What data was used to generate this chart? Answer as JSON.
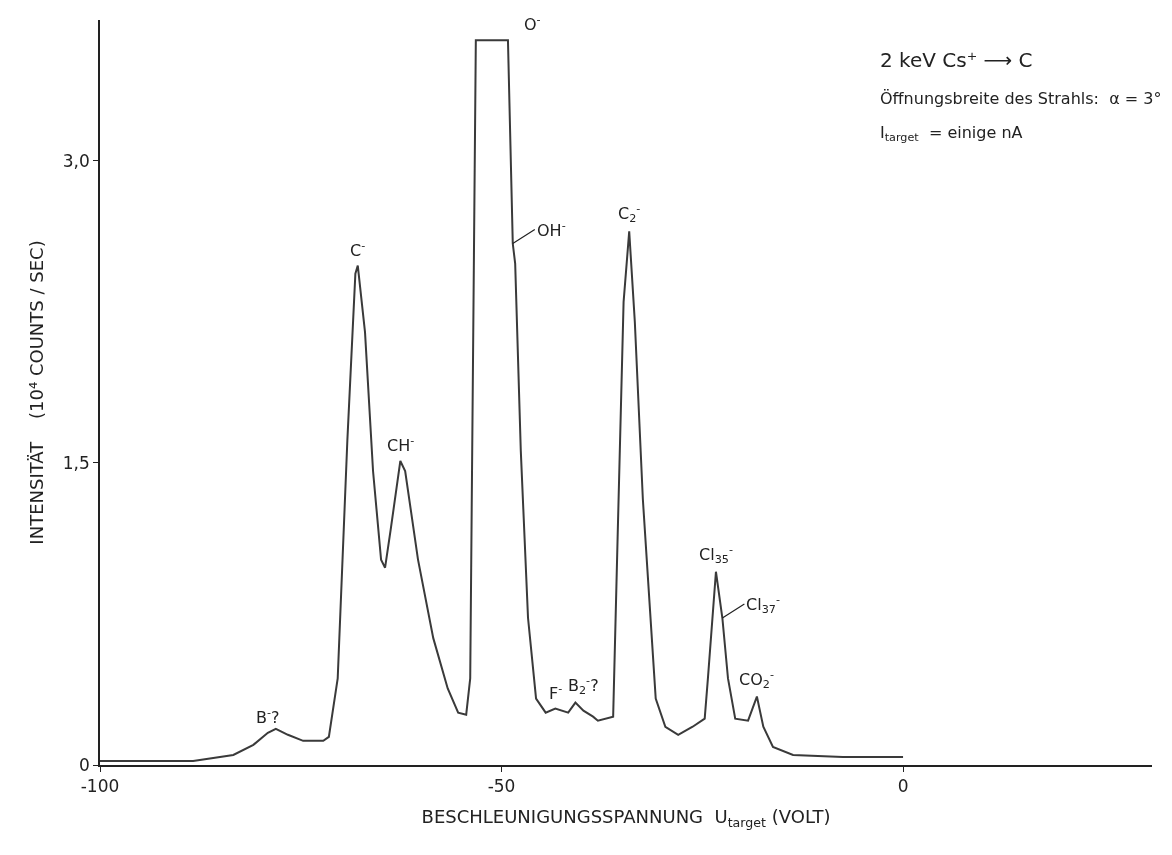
{
  "chart_data": {
    "type": "line",
    "xlabel": "BESCHLEUNIGUNGSSPANNUNG  U$_{target}$ (VOLT)",
    "ylabel": "INTENSITÄT    (10⁴ COUNTS / SEC)",
    "x": [
      -100,
      -88.4,
      -83.4,
      -80.9,
      -79.1,
      -78.1,
      -76.6,
      -74.7,
      -72.2,
      -71.5,
      -70.4,
      -69.2,
      -68.2,
      -67.9,
      -67.0,
      -66.0,
      -65.0,
      -64.5,
      -63.8,
      -62.6,
      -62.0,
      -60.4,
      -58.5,
      -56.7,
      -55.4,
      -54.4,
      -53.9,
      -53.2,
      -49.2,
      -48.6,
      -48.3,
      -47.6,
      -46.7,
      -45.7,
      -44.5,
      -43.3,
      -41.7,
      -40.8,
      -39.8,
      -38.6,
      -38.0,
      -36.1,
      -35.5,
      -34.8,
      -34.1,
      -33.4,
      -32.4,
      -30.8,
      -29.6,
      -28.0,
      -26.2,
      -24.7,
      -24.3,
      -23.3,
      -22.5,
      -21.8,
      -20.9,
      -19.3,
      -18.2,
      -17.4,
      -16.2,
      -13.7,
      -7.5,
      0
    ],
    "series": [
      {
        "color": "#3a3a3a",
        "values": [
          0.02,
          0.02,
          0.05,
          0.1,
          0.16,
          0.18,
          0.15,
          0.12,
          0.12,
          0.14,
          0.43,
          1.61,
          2.44,
          2.48,
          2.15,
          1.46,
          1.02,
          0.98,
          1.17,
          1.51,
          1.46,
          1.02,
          0.63,
          0.38,
          0.26,
          0.25,
          0.43,
          3.6,
          3.6,
          2.59,
          2.49,
          1.56,
          0.73,
          0.33,
          0.26,
          0.28,
          0.26,
          0.31,
          0.27,
          0.24,
          0.22,
          0.24,
          1.2,
          2.3,
          2.65,
          2.2,
          1.32,
          0.33,
          0.19,
          0.15,
          0.19,
          0.23,
          0.43,
          0.96,
          0.73,
          0.43,
          0.23,
          0.22,
          0.34,
          0.19,
          0.09,
          0.05,
          0.04,
          0.04
        ]
      }
    ],
    "xlim": [
      -100,
      31
    ],
    "ylim": [
      0,
      3.7
    ],
    "xticks": [
      -100,
      -50,
      0
    ],
    "yticks": [
      0,
      {
        "value": 1.5,
        "label": "1,5"
      },
      {
        "value": 3.0,
        "label": "3,0"
      }
    ],
    "marker": "none",
    "line_style": "solid",
    "annotations": [
      {
        "text": "B$^{-}$?",
        "x": -79.1,
        "y": 0.16
      },
      {
        "text": "C$^{-}$",
        "x": -67.9,
        "y": 2.48
      },
      {
        "text": "CH$^{-}$",
        "x": -62.6,
        "y": 1.51
      },
      {
        "text": "O$^{-}$",
        "x": -49.2,
        "y": 3.6
      },
      {
        "text": "OH$^{-}$",
        "x": -48.6,
        "y": 2.59
      },
      {
        "text": "F$^{-}$",
        "x": -43.3,
        "y": 0.28
      },
      {
        "text": "B$_{2}$$^{-}$?",
        "x": -39.8,
        "y": 0.31
      },
      {
        "text": "C$_{2}$$^{-}$",
        "x": -34.1,
        "y": 2.65
      },
      {
        "text": "Cl$_{35}$$^{-}$",
        "x": -23.3,
        "y": 0.96
      },
      {
        "text": "Cl$_{37}$$^{-}$",
        "x": -22.5,
        "y": 0.73
      },
      {
        "text": "CO$_{2}$$^{-}$",
        "x": -18.2,
        "y": 0.34
      },
      "2 keV Cs⁺ ⟶ C",
      "Öffnungsbreite des Strahls:  α = 3°",
      "I$_{target}$  = einige nA"
    ]
  }
}
